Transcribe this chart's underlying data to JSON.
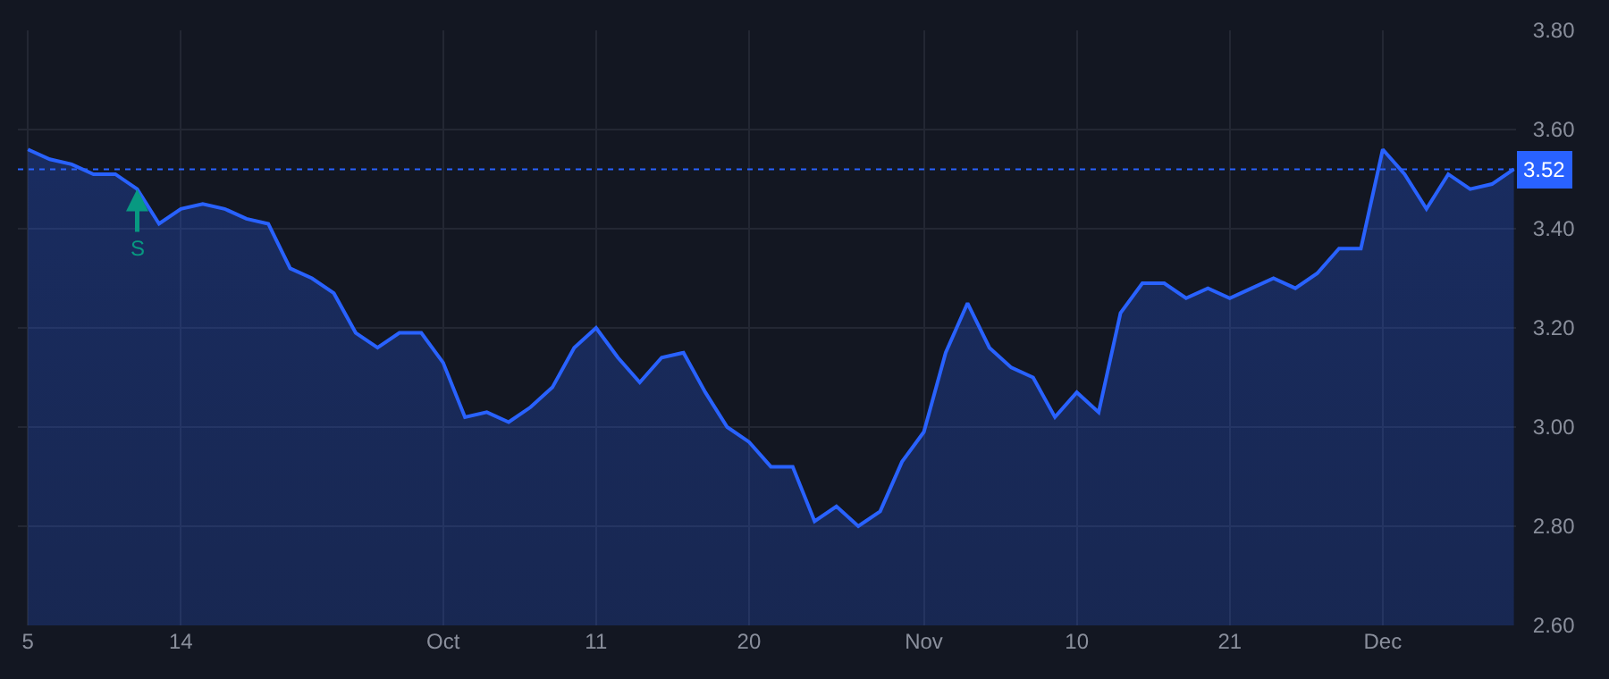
{
  "chart_data": {
    "type": "area",
    "categories": [
      "5",
      null,
      null,
      null,
      null,
      null,
      null,
      "14",
      null,
      null,
      null,
      null,
      null,
      null,
      null,
      null,
      null,
      null,
      null,
      "Oct",
      null,
      null,
      null,
      null,
      null,
      null,
      "11",
      null,
      null,
      null,
      null,
      null,
      null,
      "20",
      null,
      null,
      null,
      null,
      null,
      null,
      null,
      "Nov",
      null,
      null,
      null,
      null,
      null,
      null,
      "10",
      null,
      null,
      null,
      null,
      null,
      null,
      "21",
      null,
      null,
      null,
      null,
      null,
      null,
      "Dec",
      null,
      null,
      null,
      null,
      null,
      null
    ],
    "series": [
      {
        "color": "#2962ff",
        "values": [
          3.56,
          3.54,
          3.53,
          3.51,
          3.51,
          3.48,
          3.41,
          3.44,
          3.45,
          3.44,
          3.42,
          3.41,
          3.32,
          3.3,
          3.27,
          3.19,
          3.16,
          3.19,
          3.19,
          3.13,
          3.02,
          3.03,
          3.01,
          3.04,
          3.08,
          3.16,
          3.2,
          3.14,
          3.09,
          3.14,
          3.15,
          3.07,
          3.0,
          2.97,
          2.92,
          2.92,
          2.81,
          2.84,
          2.8,
          2.83,
          2.93,
          2.99,
          3.15,
          3.25,
          3.16,
          3.12,
          3.1,
          3.02,
          3.07,
          3.03,
          3.23,
          3.29,
          3.29,
          3.26,
          3.28,
          3.26,
          3.28,
          3.3,
          3.28,
          3.31,
          3.36,
          3.36,
          3.56,
          3.51,
          3.44,
          3.51,
          3.48,
          3.49,
          3.52
        ]
      }
    ],
    "ylim": [
      2.6,
      3.8
    ],
    "yticks": [
      {
        "value": 2.6,
        "label": "2.60"
      },
      {
        "value": 2.8,
        "label": "2.80"
      },
      {
        "value": 3.0,
        "label": "3.00"
      },
      {
        "value": 3.2,
        "label": "3.20"
      },
      {
        "value": 3.4,
        "label": "3.40"
      },
      {
        "value": 3.6,
        "label": "3.60"
      },
      {
        "value": 3.8,
        "label": "3.80"
      }
    ],
    "ref_lines": [
      {
        "axis": "y",
        "value": 3.52,
        "label": "3.52",
        "color": "#2962ff",
        "line_style": "dotted"
      }
    ],
    "annotations": [
      {
        "text": "S",
        "y": 3.48
      }
    ],
    "grid": true,
    "line_style": "solid",
    "marker": "none"
  }
}
